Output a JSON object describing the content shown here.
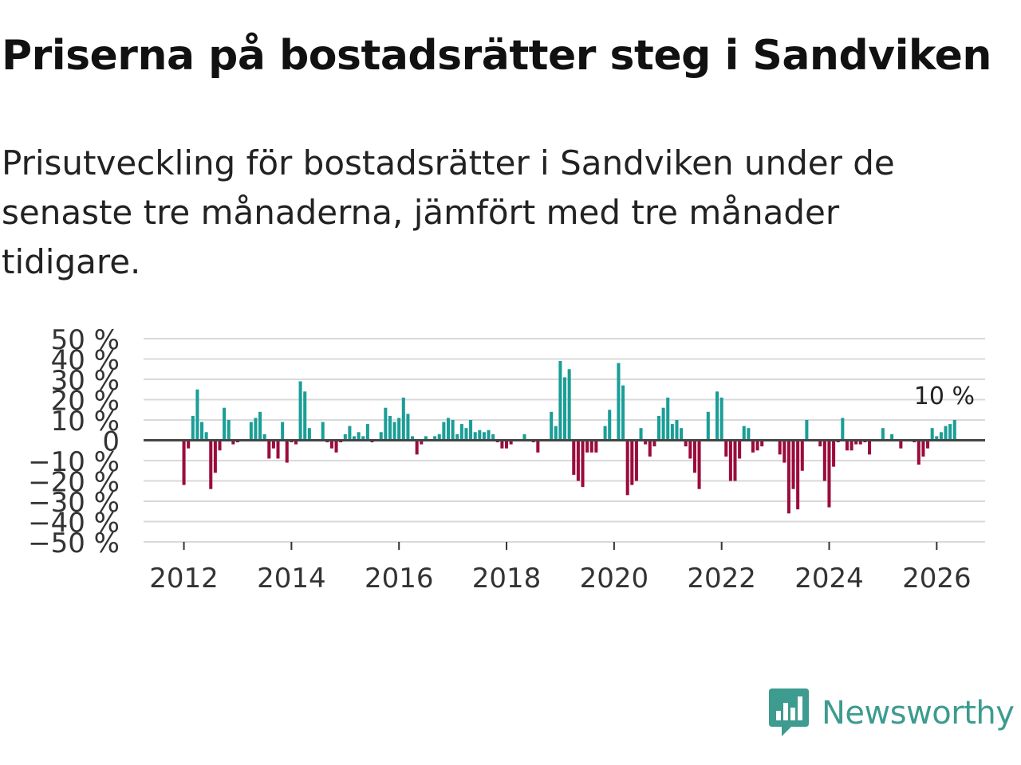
{
  "title": "Priserna på bostadsrätter steg i Sandviken",
  "subtitle": "Prisutveckling för bostadsrätter i Sandviken under de senaste tre månaderna, jämfört med tre månader tidigare.",
  "brand": {
    "name": "Newsworthy",
    "icon": "newsworthy-logo-icon"
  },
  "colors": {
    "positive": "#1a9e97",
    "negative": "#9b0b3c",
    "grid": "#d9d9d9",
    "zero": "#444444",
    "text": "#333333",
    "brand": "#3d9b8f"
  },
  "chart_data": {
    "type": "bar",
    "title": "Priserna på bostadsrätter steg i Sandviken",
    "xlabel": "",
    "ylabel": "",
    "ylim": [
      -50,
      50
    ],
    "yticks": [
      50,
      40,
      30,
      20,
      10,
      0,
      -10,
      -20,
      -30,
      -40,
      -50
    ],
    "ytick_labels": [
      "50 %",
      "40 %",
      "30 %",
      "20 %",
      "10 %",
      "0",
      "−10 %",
      "−20 %",
      "−30 %",
      "−40 %",
      "−50 %"
    ],
    "xlim": [
      2011.25,
      2026.9
    ],
    "xticks": [
      2012,
      2014,
      2016,
      2018,
      2020,
      2022,
      2024,
      2026
    ],
    "xtick_labels": [
      "2012",
      "2014",
      "2016",
      "2018",
      "2020",
      "2022",
      "2024",
      "2026"
    ],
    "start": 2012.0,
    "step": 0.08333,
    "annotation": {
      "text": "10 %",
      "value": 10
    },
    "values": [
      -22,
      -4,
      12,
      25,
      9,
      4,
      -24,
      -16,
      -5,
      16,
      10,
      -2,
      -1,
      0,
      0,
      9,
      11,
      14,
      3,
      -9,
      -4,
      -9,
      9,
      -11,
      -1,
      -2,
      29,
      24,
      6,
      0,
      0,
      9,
      -1,
      -4,
      -6,
      -1,
      3,
      7,
      2,
      4,
      2,
      8,
      -1,
      0,
      4,
      16,
      12,
      9,
      11,
      21,
      13,
      2,
      -7,
      -2,
      2,
      0,
      2,
      3,
      9,
      11,
      10,
      3,
      8,
      6,
      10,
      4,
      5,
      4,
      5,
      3,
      -1,
      -4,
      -4,
      -2,
      0,
      0,
      3,
      0,
      -1,
      -6,
      0,
      0,
      14,
      7,
      39,
      31,
      35,
      -17,
      -20,
      -23,
      -6,
      -6,
      -6,
      0,
      7,
      15,
      0,
      38,
      27,
      -27,
      -22,
      -20,
      6,
      -2,
      -8,
      -3,
      12,
      16,
      21,
      8,
      10,
      6,
      -3,
      -9,
      -16,
      -24,
      0,
      14,
      0,
      24,
      21,
      -8,
      -20,
      -20,
      -9,
      7,
      6,
      -6,
      -5,
      -3,
      0,
      0,
      0,
      -7,
      -11,
      -36,
      -24,
      -34,
      -15,
      10,
      0,
      0,
      -3,
      -20,
      -33,
      -13,
      -1,
      11,
      -5,
      -5,
      -2,
      -2,
      -1,
      -7,
      0,
      0,
      6,
      0,
      3,
      0,
      -4,
      0,
      0,
      -1,
      -12,
      -8,
      -4,
      6,
      2,
      4,
      7,
      8,
      10
    ]
  }
}
